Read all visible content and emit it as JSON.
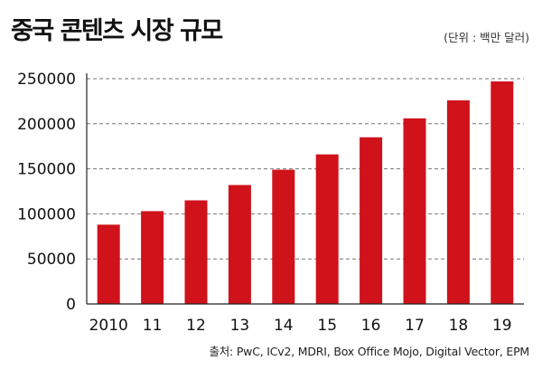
{
  "header": {
    "title": "중국 콘텐츠 시장 규모",
    "unit": "(단위 : 백만 달러)"
  },
  "footer": {
    "source": "출처: PwC, ICv2, MDRI, Box Office Mojo, Digital Vector, EPM"
  },
  "colors": {
    "bar": "#d0121b",
    "grid": "#777777",
    "axis": "#222222",
    "text": "#111111"
  },
  "chart_data": {
    "type": "bar",
    "title": "중국 콘텐츠 시장 규모",
    "categories": [
      "2010",
      "11",
      "12",
      "13",
      "14",
      "15",
      "16",
      "17",
      "18",
      "19"
    ],
    "values": [
      88000,
      103000,
      115000,
      132000,
      149000,
      166000,
      185000,
      206000,
      226000,
      247000
    ],
    "ylim": [
      0,
      250000
    ],
    "yticks": [
      0,
      50000,
      100000,
      150000,
      200000,
      250000
    ],
    "grid": true,
    "grid_style": "dashed"
  }
}
